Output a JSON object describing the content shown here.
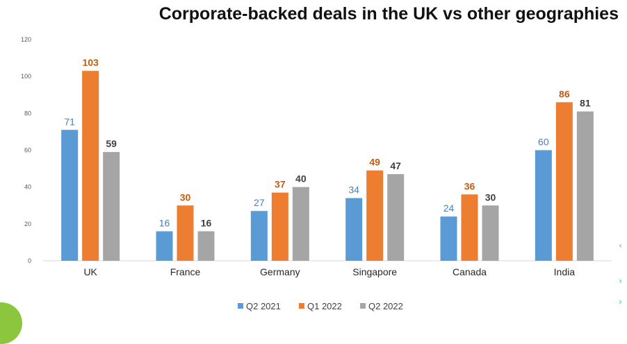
{
  "chart_data": {
    "type": "bar",
    "title": "Corporate-backed deals in the UK vs other geographies",
    "categories": [
      "UK",
      "France",
      "Germany",
      "Singapore",
      "Canada",
      "India"
    ],
    "series": [
      {
        "name": "Q2 2021",
        "values": [
          71,
          16,
          27,
          34,
          24,
          60
        ],
        "color": "#5b9bd5",
        "label_color": "#4a7fb5"
      },
      {
        "name": "Q1 2022",
        "values": [
          103,
          30,
          37,
          49,
          36,
          86
        ],
        "color": "#ed7d31",
        "label_color": "#c55a11"
      },
      {
        "name": "Q2 2022",
        "values": [
          59,
          16,
          40,
          47,
          30,
          81
        ],
        "color": "#a5a5a5",
        "label_color": "#404040"
      }
    ],
    "y_ticks": [
      0,
      20,
      40,
      60,
      80,
      100,
      120
    ],
    "ylim": [
      0,
      120
    ],
    "xlabel": "",
    "ylabel": "",
    "grid": false,
    "legend": "bottom-center"
  }
}
